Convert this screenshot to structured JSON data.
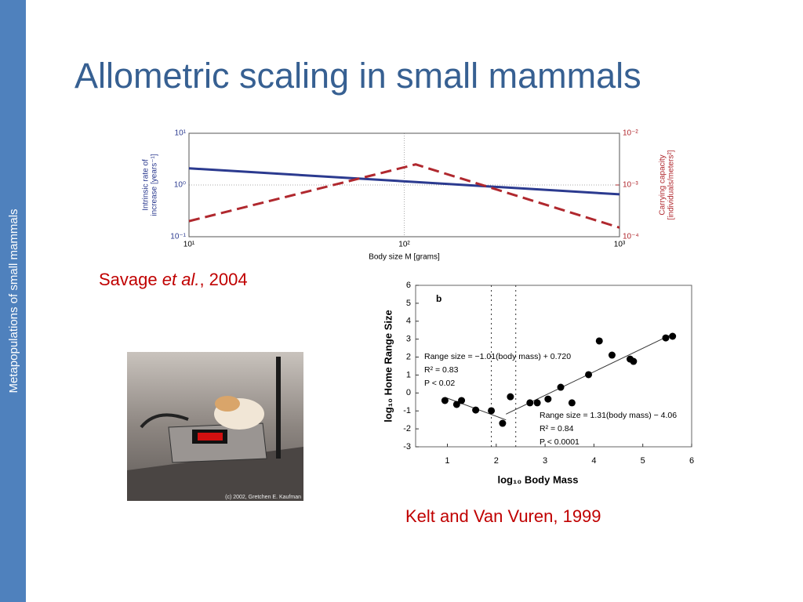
{
  "sidebar": "Metapopulations of small mammals",
  "title": "Allometric scaling in small mammals",
  "citation_1": [
    "Savage ",
    "et al.",
    ", 2004"
  ],
  "citation_2": "Kelt and Van Vuren, 1999",
  "photo_caption": "(c) 2002, Gretchen E. Kaufman",
  "chart_data": [
    {
      "type": "line",
      "log_scale": true,
      "grid": true,
      "xlabel": "Body size M [grams]",
      "ylabel": [
        "Intrinsic rate of",
        "increase [years⁻¹]"
      ],
      "y2label": [
        "Carrying capacity",
        "[individuals/meters²]"
      ],
      "xlim": [
        10,
        1000
      ],
      "ylim": [
        0.1,
        10
      ],
      "y2lim": [
        0.0001,
        0.01
      ],
      "xticks": [
        {
          "value": 10,
          "label": "10¹"
        },
        {
          "value": 100,
          "label": "10²"
        },
        {
          "value": 1000,
          "label": "10³"
        }
      ],
      "yticks": [
        {
          "value": 0.1,
          "label": "10⁻¹"
        },
        {
          "value": 1,
          "label": "10⁰"
        },
        {
          "value": 10,
          "label": "10¹"
        }
      ],
      "y2ticks": [
        {
          "value": 0.0001,
          "label": "10⁻⁴"
        },
        {
          "value": 0.001,
          "label": "10⁻³"
        },
        {
          "value": 0.01,
          "label": "10⁻²"
        }
      ],
      "series": [
        {
          "color": "#2b3a8f",
          "dashed": false,
          "x": [
            10,
            1000
          ],
          "values": [
            2.1,
            0.66
          ]
        },
        {
          "color": "#b0282e",
          "dashed": true,
          "axis": "y2",
          "x": [
            10,
            113,
            1000
          ],
          "values": [
            0.0002,
            0.0025,
            0.00015
          ]
        }
      ]
    },
    {
      "type": "scatter",
      "panel_label": "b",
      "xlabel": "log₁₀ Body Mass",
      "ylabel": "log₁₀ Home Range Size",
      "xlim": [
        0.35,
        6
      ],
      "ylim": [
        -3,
        6
      ],
      "xticks": [
        1,
        2,
        3,
        4,
        5,
        6
      ],
      "yticks": [
        -3,
        -2,
        -1,
        0,
        1,
        2,
        3,
        4,
        5,
        6
      ],
      "reference_lines": [
        1.9,
        2.4
      ],
      "color": "#000000",
      "x": [
        0.95,
        1.19,
        1.29,
        1.58,
        1.9,
        2.13,
        2.29,
        2.69,
        2.84,
        3.06,
        3.32,
        3.55,
        3.89,
        4.11,
        4.37,
        4.74,
        4.81,
        5.47,
        5.61
      ],
      "values": [
        -0.42,
        -0.64,
        -0.42,
        -0.95,
        -0.99,
        -1.69,
        -0.21,
        -0.55,
        -0.55,
        -0.34,
        0.32,
        -0.55,
        1.02,
        2.9,
        2.11,
        1.89,
        1.76,
        3.07,
        3.16
      ],
      "fits": [
        {
          "slope": -1.01,
          "intercept": 0.72,
          "x_range": [
            0.95,
            2.2
          ],
          "text": [
            "Range size = −1.01(body mass) + 0.720",
            "R² = 0.83",
            "P < 0.02"
          ]
        },
        {
          "slope": 1.31,
          "intercept": -4.06,
          "x_range": [
            2.2,
            5.61
          ],
          "text": [
            "Range size = 1.31(body mass) − 4.06",
            "R² = 0.84",
            "P < 0.0001"
          ]
        }
      ]
    }
  ]
}
